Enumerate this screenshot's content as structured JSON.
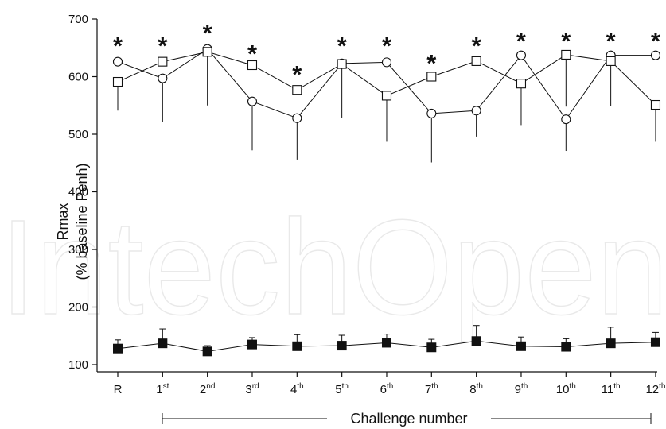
{
  "chart_data": {
    "type": "line",
    "y_axis_label_line1": "Rmax",
    "y_axis_label_line2": "(% baseline Penh)",
    "x_axis_title": "Challenge number",
    "y_ticks": [
      100,
      200,
      300,
      400,
      500,
      600,
      700
    ],
    "ylim": [
      100,
      700
    ],
    "grid": false,
    "watermark": "IntechOpen",
    "categories": [
      {
        "base": "R",
        "sup": ""
      },
      {
        "base": "1",
        "sup": "st"
      },
      {
        "base": "2",
        "sup": "nd"
      },
      {
        "base": "3",
        "sup": "rd"
      },
      {
        "base": "4",
        "sup": "th"
      },
      {
        "base": "5",
        "sup": "th"
      },
      {
        "base": "6",
        "sup": "th"
      },
      {
        "base": "7",
        "sup": "th"
      },
      {
        "base": "8",
        "sup": "th"
      },
      {
        "base": "9",
        "sup": "th"
      },
      {
        "base": "10",
        "sup": "th"
      },
      {
        "base": "11",
        "sup": "th"
      },
      {
        "base": "12",
        "sup": "th"
      }
    ],
    "significance_marker": "*",
    "significant_points": [
      true,
      true,
      true,
      true,
      true,
      true,
      true,
      true,
      true,
      true,
      true,
      true,
      true
    ],
    "series": [
      {
        "marker": "open-circle",
        "values": [
          626,
          597,
          648,
          557,
          528,
          623,
          625,
          536,
          541,
          637,
          526,
          637,
          637
        ],
        "error": [
          0,
          75,
          0,
          85,
          72,
          0,
          0,
          85,
          45,
          0,
          55,
          0,
          0
        ],
        "error_direction": [
          "up",
          "down",
          "up",
          "down",
          "down",
          "up",
          "up",
          "down",
          "down",
          "up",
          "down",
          "up",
          "up"
        ]
      },
      {
        "marker": "open-square",
        "values": [
          591,
          626,
          643,
          620,
          577,
          622,
          567,
          600,
          627,
          588,
          638,
          627,
          551
        ],
        "error": [
          50,
          0,
          93,
          0,
          0,
          93,
          80,
          0,
          0,
          72,
          90,
          78,
          64
        ],
        "error_direction": [
          "down",
          "up",
          "down",
          "up",
          "up",
          "down",
          "down",
          "up",
          "up",
          "down",
          "down",
          "down",
          "down"
        ]
      },
      {
        "marker": "filled-square",
        "values": [
          128,
          137,
          123,
          135,
          132,
          133,
          138,
          130,
          141,
          132,
          131,
          137,
          139
        ],
        "error": [
          15,
          25,
          10,
          12,
          20,
          18,
          15,
          14,
          27,
          16,
          14,
          28,
          17
        ],
        "error_direction": [
          "up",
          "up",
          "up",
          "up",
          "up",
          "up",
          "up",
          "up",
          "up",
          "up",
          "up",
          "up",
          "up"
        ]
      }
    ]
  }
}
